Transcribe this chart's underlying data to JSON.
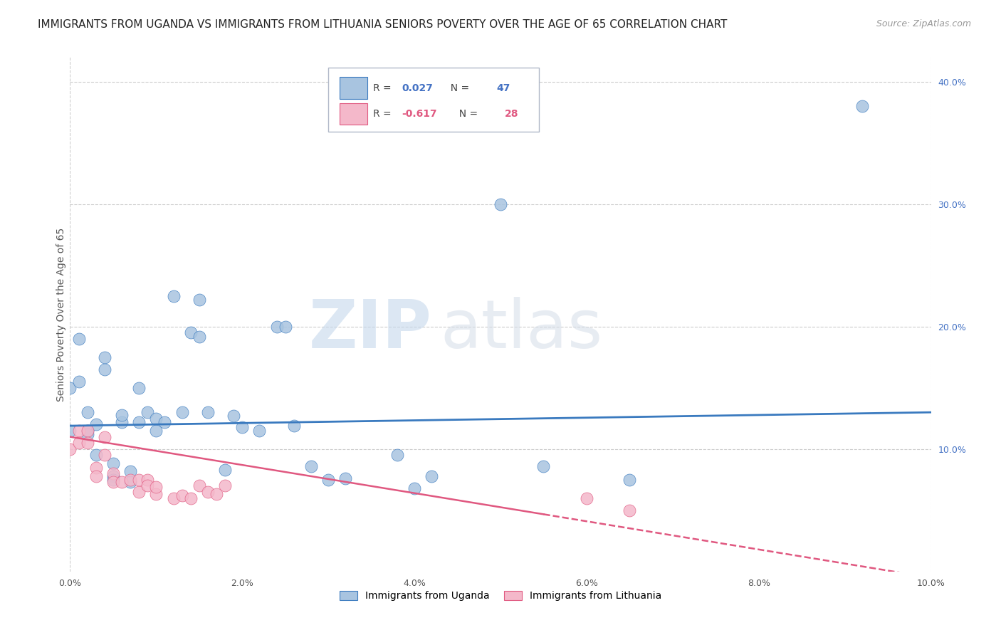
{
  "title": "IMMIGRANTS FROM UGANDA VS IMMIGRANTS FROM LITHUANIA SENIORS POVERTY OVER THE AGE OF 65 CORRELATION CHART",
  "source": "Source: ZipAtlas.com",
  "ylabel_left": "Seniors Poverty Over the Age of 65",
  "xlim": [
    0,
    0.1
  ],
  "ylim": [
    0,
    0.42
  ],
  "yticks_right": [
    0.1,
    0.2,
    0.3,
    0.4
  ],
  "ytick_labels_right": [
    "10.0%",
    "20.0%",
    "30.0%",
    "40.0%"
  ],
  "xticks": [
    0.0,
    0.02,
    0.04,
    0.06,
    0.08,
    0.1
  ],
  "xtick_labels": [
    "0.0%",
    "2.0%",
    "4.0%",
    "6.0%",
    "8.0%",
    "10.0%"
  ],
  "legend_labels": [
    "Immigrants from Uganda",
    "Immigrants from Lithuania"
  ],
  "R_uganda": 0.027,
  "N_uganda": 47,
  "R_lithuania": -0.617,
  "N_lithuania": 28,
  "uganda_color": "#a8c4e0",
  "lithuania_color": "#f4b8ca",
  "line_uganda_color": "#3a7abf",
  "line_lithuania_color": "#e05880",
  "watermark_zip": "ZIP",
  "watermark_atlas": "atlas",
  "uganda_x": [
    0.0,
    0.0,
    0.001,
    0.001,
    0.002,
    0.002,
    0.002,
    0.003,
    0.003,
    0.004,
    0.004,
    0.005,
    0.005,
    0.005,
    0.006,
    0.006,
    0.007,
    0.007,
    0.008,
    0.008,
    0.009,
    0.01,
    0.01,
    0.011,
    0.012,
    0.013,
    0.014,
    0.015,
    0.016,
    0.018,
    0.019,
    0.02,
    0.022,
    0.024,
    0.025,
    0.026,
    0.028,
    0.03,
    0.032,
    0.038,
    0.04,
    0.05,
    0.055,
    0.065,
    0.092,
    0.015,
    0.042
  ],
  "uganda_y": [
    0.15,
    0.115,
    0.19,
    0.155,
    0.115,
    0.13,
    0.112,
    0.095,
    0.12,
    0.175,
    0.165,
    0.088,
    0.078,
    0.075,
    0.122,
    0.128,
    0.082,
    0.073,
    0.15,
    0.122,
    0.13,
    0.125,
    0.115,
    0.122,
    0.225,
    0.13,
    0.195,
    0.192,
    0.13,
    0.083,
    0.127,
    0.118,
    0.115,
    0.2,
    0.2,
    0.119,
    0.086,
    0.075,
    0.076,
    0.095,
    0.068,
    0.3,
    0.086,
    0.075,
    0.38,
    0.222,
    0.078
  ],
  "lithuania_x": [
    0.0,
    0.001,
    0.001,
    0.002,
    0.002,
    0.003,
    0.003,
    0.004,
    0.004,
    0.005,
    0.005,
    0.006,
    0.007,
    0.008,
    0.008,
    0.009,
    0.009,
    0.01,
    0.01,
    0.012,
    0.013,
    0.014,
    0.015,
    0.016,
    0.017,
    0.018,
    0.06,
    0.065
  ],
  "lithuania_y": [
    0.1,
    0.115,
    0.105,
    0.115,
    0.105,
    0.085,
    0.078,
    0.11,
    0.095,
    0.08,
    0.073,
    0.073,
    0.075,
    0.065,
    0.075,
    0.075,
    0.07,
    0.063,
    0.069,
    0.06,
    0.062,
    0.06,
    0.07,
    0.065,
    0.063,
    0.07,
    0.06,
    0.05
  ],
  "line_uganda_x0": 0.0,
  "line_uganda_y0": 0.119,
  "line_uganda_x1": 0.1,
  "line_uganda_y1": 0.13,
  "line_lithuania_x0": 0.0,
  "line_lithuania_y0": 0.11,
  "line_lithuania_x1": 0.1,
  "line_lithuania_y1": -0.005,
  "line_lithuania_solid_end": 0.055,
  "background_color": "#ffffff",
  "grid_color": "#cccccc",
  "title_fontsize": 11,
  "axis_label_fontsize": 10,
  "tick_fontsize": 9,
  "legend_fontsize": 10
}
